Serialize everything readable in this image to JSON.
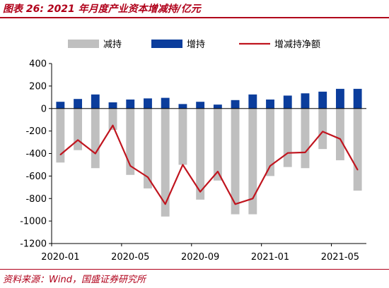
{
  "header": {
    "title": "图表 26:  2021 年月度产业资本增减持/亿元"
  },
  "footer": {
    "source": "资料来源：Wind，国盛证券研究所"
  },
  "chart_data": {
    "type": "bar",
    "title": "图表 26:  2021 年月度产业资本增减持/亿元",
    "categories": [
      "2020-01",
      "2020-02",
      "2020-03",
      "2020-04",
      "2020-05",
      "2020-06",
      "2020-07",
      "2020-08",
      "2020-09",
      "2020-10",
      "2020-11",
      "2020-12",
      "2021-01",
      "2021-02",
      "2021-03",
      "2021-04",
      "2021-05",
      "2021-06"
    ],
    "x_tick_labels": [
      "2020-01",
      "2020-05",
      "2020-09",
      "2021-01",
      "2021-05"
    ],
    "x_tick_indices": [
      0,
      4,
      8,
      12,
      16
    ],
    "series": [
      {
        "name": "减持",
        "type": "bar",
        "color": "#bfbfbf",
        "values": [
          -480,
          -370,
          -530,
          -190,
          -590,
          -710,
          -960,
          -500,
          -810,
          -640,
          -940,
          -940,
          -600,
          -520,
          -530,
          -360,
          -460,
          -730
        ]
      },
      {
        "name": "增持",
        "type": "bar",
        "color": "#0b3d9c",
        "values": [
          60,
          85,
          125,
          55,
          80,
          90,
          95,
          40,
          60,
          35,
          75,
          125,
          80,
          115,
          135,
          150,
          175,
          175
        ]
      },
      {
        "name": "增减持净额",
        "type": "line",
        "color": "#c0151f",
        "values": [
          -410,
          -280,
          -400,
          -150,
          -510,
          -610,
          -850,
          -500,
          -740,
          -560,
          -850,
          -800,
          -510,
          -395,
          -390,
          -205,
          -270,
          -545
        ]
      }
    ],
    "ylim": [
      -1200,
      400
    ],
    "yticks": [
      400,
      200,
      0,
      -200,
      -400,
      -600,
      -800,
      -1000,
      -1200
    ],
    "xlabel": "",
    "ylabel": "",
    "legend_position": "top",
    "grid": false
  }
}
